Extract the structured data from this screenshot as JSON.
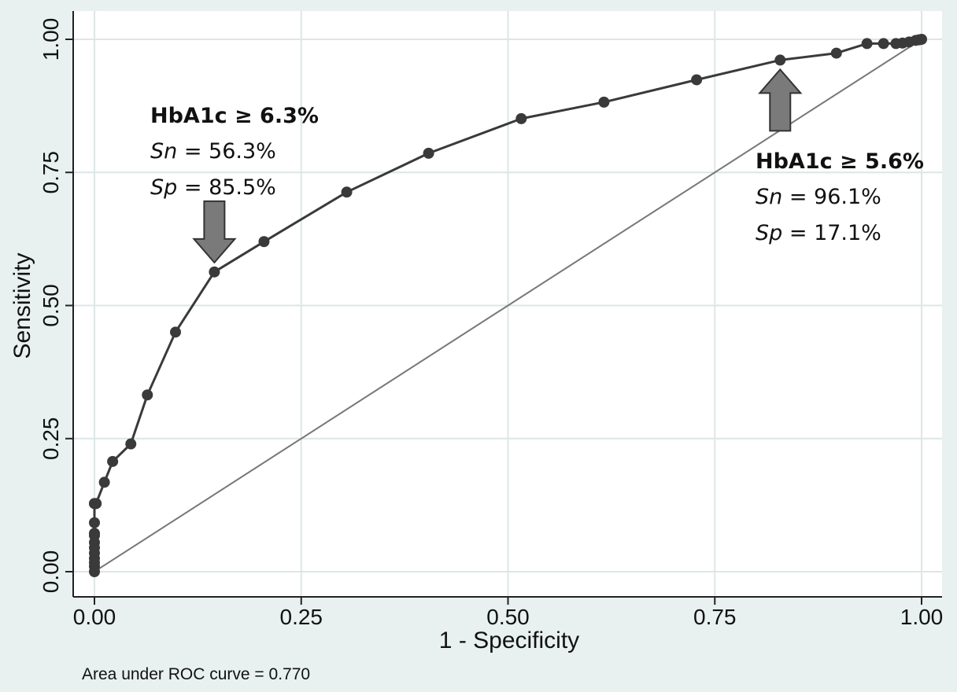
{
  "chart_data": {
    "type": "line",
    "title": "",
    "xlabel": "1 - Specificity",
    "ylabel": "Sensitivity",
    "xlim": [
      0,
      1
    ],
    "ylim": [
      0,
      1
    ],
    "x_ticks": [
      "0.00",
      "0.25",
      "0.50",
      "0.75",
      "1.00"
    ],
    "y_ticks": [
      "0.00",
      "0.25",
      "0.50",
      "0.75",
      "1.00"
    ],
    "grid": true,
    "note": "Area under ROC curve = 0.770",
    "colors": {
      "background": "#e8f0f0",
      "plot_bg": "#ffffff",
      "grid": "#dde6e6",
      "curve": "#3a3a3a",
      "reference": "#777777",
      "arrow_fill": "#7a7a7a"
    },
    "series": [
      {
        "x": [
          0,
          0,
          0,
          0,
          0,
          0,
          0,
          0,
          0,
          0,
          0,
          0,
          0.002,
          0.002,
          0.012,
          0.022,
          0.044,
          0.064,
          0.098,
          0.145,
          0.205,
          0.305,
          0.404,
          0.516,
          0.616,
          0.728,
          0.829,
          0.897,
          0.934,
          0.954,
          0.969,
          0.977,
          0.985,
          0.993,
          0.997,
          1.0
        ],
        "y": [
          0,
          0.01,
          0.017,
          0.025,
          0.035,
          0.045,
          0.055,
          0.068,
          0.072,
          0.092,
          0.128,
          0.128,
          0.128,
          0.128,
          0.168,
          0.207,
          0.24,
          0.332,
          0.45,
          0.563,
          0.62,
          0.713,
          0.786,
          0.851,
          0.882,
          0.924,
          0.961,
          0.974,
          0.992,
          0.992,
          0.992,
          0.993,
          0.995,
          0.998,
          0.999,
          1.0
        ]
      }
    ],
    "reference_line": {
      "x": [
        0,
        1
      ],
      "y": [
        0,
        1
      ]
    },
    "annotations": [
      {
        "title": "HbA1c ≥ 6.3%",
        "sn_label": "Sn",
        "sn_value": " = 56.3%",
        "sp_label": "Sp",
        "sp_value": " = 85.5%",
        "point_x": 0.145,
        "point_y": 0.563,
        "arrow": "down"
      },
      {
        "title": "HbA1c ≥ 5.6%",
        "sn_label": "Sn",
        "sn_value": " = 96.1%",
        "sp_label": "Sp",
        "sp_value": " = 17.1%",
        "point_x": 0.829,
        "point_y": 0.961,
        "arrow": "up"
      }
    ]
  }
}
